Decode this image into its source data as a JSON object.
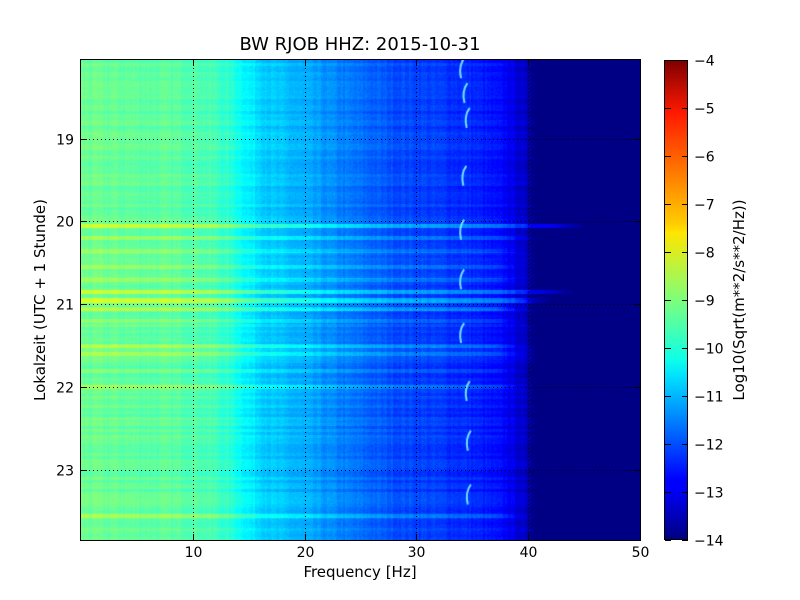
{
  "chart_data": {
    "type": "heatmap",
    "title": "BW RJOB HHZ: 2015-10-31",
    "xlabel": "Frequency [Hz]",
    "ylabel": "Lokalzeit (UTC + 1 Stunde)",
    "xlim": [
      0,
      50
    ],
    "ylim": [
      18.05,
      23.85
    ],
    "y_inverted": true,
    "x_ticks": [
      10,
      20,
      30,
      40,
      50
    ],
    "x_tick_labels": [
      "10",
      "20",
      "30",
      "40",
      "50"
    ],
    "y_ticks": [
      19,
      20,
      21,
      22,
      23
    ],
    "y_tick_labels": [
      "19",
      "20",
      "21",
      "22",
      "23"
    ],
    "grid": true,
    "colormap": "jet",
    "colorbar": {
      "label": "Log10(Sqrt(m**2/s**2/Hz))",
      "range": [
        -14,
        -4
      ],
      "ticks": [
        -4,
        -5,
        -6,
        -7,
        -8,
        -9,
        -10,
        -11,
        -12,
        -13,
        -14
      ],
      "tick_labels": [
        "−4",
        "−5",
        "−6",
        "−7",
        "−8",
        "−9",
        "−10",
        "−11",
        "−12",
        "−13",
        "−14"
      ]
    },
    "spectrum_profile": {
      "frequency_hz": [
        0,
        5,
        10,
        12,
        13.5,
        15,
        17,
        20,
        24,
        28,
        32,
        35,
        38,
        39.5,
        40.5,
        50
      ],
      "level": [
        -9.2,
        -9.3,
        -9.4,
        -9.6,
        -9.9,
        -10.4,
        -10.8,
        -11.1,
        -11.6,
        -12.0,
        -12.2,
        -12.4,
        -12.8,
        -13.3,
        -13.9,
        -14.0
      ]
    },
    "noise_bands": [
      {
        "hour": 20.05,
        "delta": 1.1,
        "max_freq_hz": 45
      },
      {
        "hour": 20.2,
        "delta": 0.6,
        "max_freq_hz": 41
      },
      {
        "hour": 20.35,
        "delta": 0.5,
        "max_freq_hz": 40
      },
      {
        "hour": 20.55,
        "delta": 0.5,
        "max_freq_hz": 40
      },
      {
        "hour": 20.7,
        "delta": 0.5,
        "max_freq_hz": 40
      },
      {
        "hour": 20.85,
        "delta": 1.0,
        "max_freq_hz": 44
      },
      {
        "hour": 20.95,
        "delta": 1.0,
        "max_freq_hz": 42
      },
      {
        "hour": 21.05,
        "delta": 0.8,
        "max_freq_hz": 40
      },
      {
        "hour": 21.2,
        "delta": 0.5,
        "max_freq_hz": 40
      },
      {
        "hour": 21.5,
        "delta": 0.6,
        "max_freq_hz": 40
      },
      {
        "hour": 21.6,
        "delta": 0.5,
        "max_freq_hz": 40
      },
      {
        "hour": 21.8,
        "delta": 0.4,
        "max_freq_hz": 40
      },
      {
        "hour": 22.0,
        "delta": 0.5,
        "max_freq_hz": 40
      },
      {
        "hour": 23.55,
        "delta": 0.5,
        "max_freq_hz": 40
      }
    ],
    "tonal_marks": [
      {
        "hour": 18.15,
        "freq_hz": 34.0
      },
      {
        "hour": 18.45,
        "freq_hz": 34.3
      },
      {
        "hour": 18.75,
        "freq_hz": 34.5
      },
      {
        "hour": 19.45,
        "freq_hz": 34.2
      },
      {
        "hour": 20.1,
        "freq_hz": 34.0
      },
      {
        "hour": 20.7,
        "freq_hz": 34.0
      },
      {
        "hour": 21.35,
        "freq_hz": 34.0
      },
      {
        "hour": 22.05,
        "freq_hz": 34.5
      },
      {
        "hour": 22.65,
        "freq_hz": 34.6
      },
      {
        "hour": 23.3,
        "freq_hz": 34.6
      }
    ]
  }
}
